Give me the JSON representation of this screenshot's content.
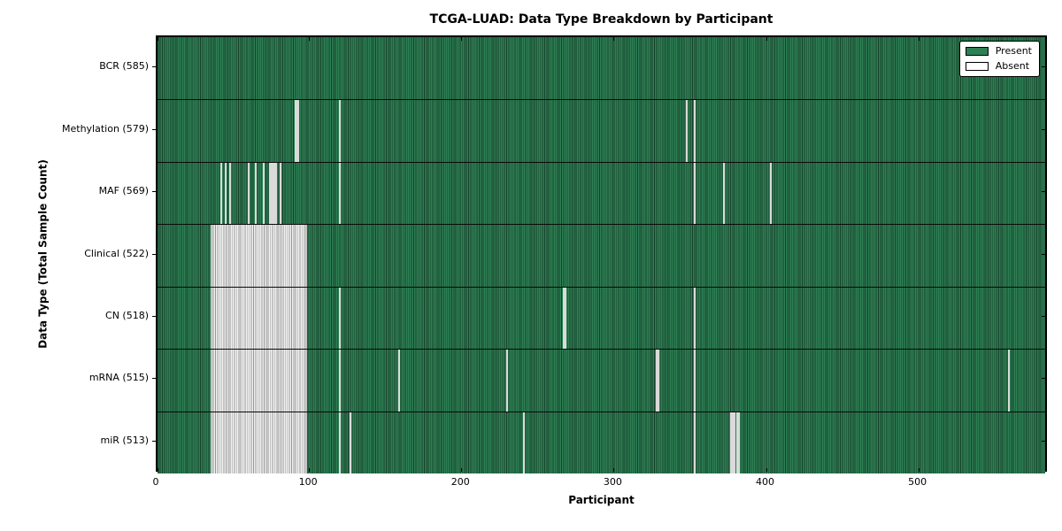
{
  "title": "TCGA-LUAD: Data Type Breakdown by Participant",
  "axes": {
    "xlabel": "Participant",
    "ylabel": "Data Type (Total Sample Count)"
  },
  "legend": {
    "items": [
      {
        "label": "Present",
        "color": "#2d7f54"
      },
      {
        "label": "Absent",
        "color": "#ffffff"
      }
    ]
  },
  "chart_data": {
    "type": "heatmap",
    "title": "TCGA-LUAD: Data Type Breakdown by Participant",
    "xlabel": "Participant",
    "ylabel": "Data Type (Total Sample Count)",
    "x_range": [
      0,
      585
    ],
    "x_ticks": [
      0,
      100,
      200,
      300,
      400,
      500
    ],
    "grid": false,
    "legend_position": "upper right",
    "present_color": "#2d7f54",
    "absent_color": "#ffffff",
    "rows": [
      {
        "label": "BCR (585)",
        "data_type": "BCR",
        "present_count": 585,
        "absent_blocks": [],
        "absent_singles": []
      },
      {
        "label": "Methylation (579)",
        "data_type": "Methylation",
        "present_count": 579,
        "absent_blocks": [],
        "absent_singles": [
          90,
          91,
          92,
          119,
          347,
          352
        ]
      },
      {
        "label": "MAF (569)",
        "data_type": "MAF",
        "present_count": 569,
        "absent_blocks": [],
        "absent_singles": [
          41,
          44,
          47,
          59,
          64,
          69,
          73,
          74,
          75,
          76,
          77,
          80,
          119,
          352,
          371,
          402
        ]
      },
      {
        "label": "Clinical (522)",
        "data_type": "Clinical",
        "present_count": 522,
        "absent_blocks": [
          [
            35,
            97
          ]
        ],
        "absent_singles": []
      },
      {
        "label": "CN (518)",
        "data_type": "CN",
        "present_count": 518,
        "absent_blocks": [
          [
            35,
            97
          ]
        ],
        "absent_singles": [
          119,
          266,
          267,
          352
        ]
      },
      {
        "label": "mRNA (515)",
        "data_type": "mRNA",
        "present_count": 515,
        "absent_blocks": [
          [
            35,
            97
          ]
        ],
        "absent_singles": [
          119,
          158,
          229,
          327,
          328,
          352,
          558
        ]
      },
      {
        "label": "miR (513)",
        "data_type": "miR",
        "present_count": 513,
        "absent_blocks": [
          [
            35,
            97
          ]
        ],
        "absent_singles": [
          119,
          126,
          240,
          352,
          376,
          377,
          378,
          380,
          381
        ]
      }
    ]
  }
}
